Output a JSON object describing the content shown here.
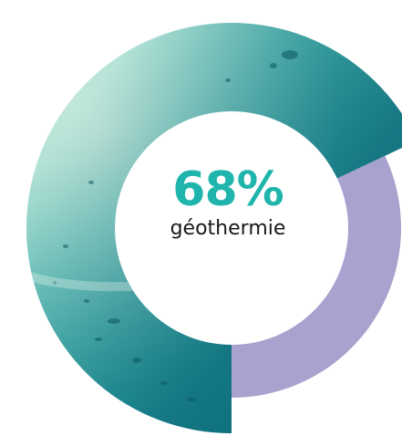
{
  "colors": {
    "accent": "#1fb5ac",
    "other_slice": "#a8a2cf",
    "water_light": "#a7d8cf",
    "water_mid": "#3cb9b1",
    "water_dark": "#0f7180",
    "background": "#ffffff"
  },
  "chart_data": {
    "type": "pie",
    "donut": true,
    "slices": [
      {
        "value": 68,
        "color": "#1fb5ac"
      },
      {
        "value": 32,
        "color": "#a8a2cf"
      }
    ],
    "center_value": "68%",
    "center_label": "géothermie"
  }
}
